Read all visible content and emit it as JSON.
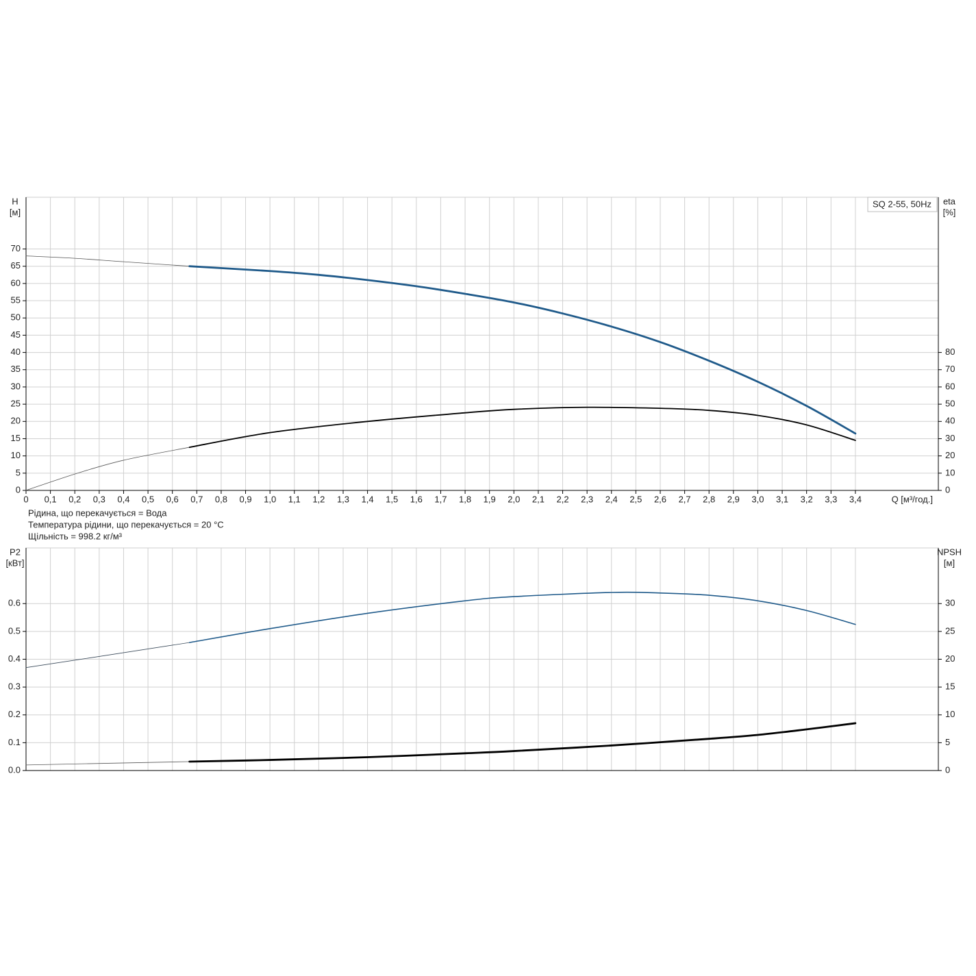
{
  "chart_data": [
    {
      "type": "line",
      "title": "SQ 2-55, 50Hz",
      "y_label": "H",
      "y_unit": "[м]",
      "y2_label": "eta",
      "y2_unit": "[%]",
      "x_label": "Q [м³/год.]",
      "notes": [
        "Рідина, що перекачується = Вода",
        "Температура рідини, що перекачується = 20 °C",
        "Щільність = 998.2 кг/м³"
      ],
      "xlim": [
        0,
        3.74
      ],
      "xticks": [
        0,
        {
          "value": 0.1,
          "label": "0,1"
        },
        {
          "value": 0.2,
          "label": "0,2"
        },
        {
          "value": 0.3,
          "label": "0,3"
        },
        {
          "value": 0.4,
          "label": "0,4"
        },
        {
          "value": 0.5,
          "label": "0,5"
        },
        {
          "value": 0.6,
          "label": "0,6"
        },
        {
          "value": 0.7,
          "label": "0,7"
        },
        {
          "value": 0.8,
          "label": "0,8"
        },
        {
          "value": 0.9,
          "label": "0,9"
        },
        {
          "value": 1.0,
          "label": "1,0"
        },
        {
          "value": 1.1,
          "label": "1,1"
        },
        {
          "value": 1.2,
          "label": "1,2"
        },
        {
          "value": 1.3,
          "label": "1,3"
        },
        {
          "value": 1.4,
          "label": "1,4"
        },
        {
          "value": 1.5,
          "label": "1,5"
        },
        {
          "value": 1.6,
          "label": "1,6"
        },
        {
          "value": 1.7,
          "label": "1,7"
        },
        {
          "value": 1.8,
          "label": "1,8"
        },
        {
          "value": 1.9,
          "label": "1,9"
        },
        {
          "value": 2.0,
          "label": "2,0"
        },
        {
          "value": 2.1,
          "label": "2,1"
        },
        {
          "value": 2.2,
          "label": "2,2"
        },
        {
          "value": 2.3,
          "label": "2,3"
        },
        {
          "value": 2.4,
          "label": "2,4"
        },
        {
          "value": 2.5,
          "label": "2,5"
        },
        {
          "value": 2.6,
          "label": "2,6"
        },
        {
          "value": 2.7,
          "label": "2,7"
        },
        {
          "value": 2.8,
          "label": "2,8"
        },
        {
          "value": 2.9,
          "label": "2,9"
        },
        {
          "value": 3.0,
          "label": "3,0"
        },
        {
          "value": 3.1,
          "label": "3,1"
        },
        {
          "value": 3.2,
          "label": "3,2"
        },
        {
          "value": 3.3,
          "label": "3,3"
        },
        {
          "value": 3.4,
          "label": "3,4"
        }
      ],
      "ylim": [
        0,
        85
      ],
      "yticks": [
        0,
        5,
        10,
        15,
        20,
        25,
        30,
        35,
        40,
        45,
        50,
        55,
        60,
        65,
        70
      ],
      "y2lim": [
        0,
        170
      ],
      "y2ticks": [
        0,
        10,
        20,
        30,
        40,
        50,
        60,
        70,
        80
      ],
      "grid": true,
      "series": [
        {
          "color": "#555555",
          "line_width": 0.8,
          "x": [
            0,
            0.2,
            0.4,
            0.67
          ],
          "values": [
            68,
            67.3,
            66.3,
            65
          ]
        },
        {
          "color": "#1f5a8a",
          "line_width": 2.8,
          "x": [
            0.67,
            1.0,
            1.2,
            1.4,
            1.6,
            1.8,
            2.0,
            2.2,
            2.4,
            2.6,
            2.8,
            3.0,
            3.2,
            3.4
          ],
          "values": [
            65,
            63.6,
            62.5,
            61,
            59.2,
            57,
            54.5,
            51.3,
            47.5,
            43,
            37.6,
            31.5,
            24.5,
            16.5
          ]
        },
        {
          "color": "#555555",
          "line_width": 0.8,
          "axis": "y2",
          "x": [
            0,
            0.2,
            0.4,
            0.67
          ],
          "values": [
            0,
            9.5,
            17.5,
            25
          ]
        },
        {
          "color": "#000000",
          "line_width": 1.8,
          "axis": "y2",
          "x": [
            0.67,
            1.0,
            1.4,
            1.8,
            2.0,
            2.3,
            2.6,
            2.8,
            3.0,
            3.2,
            3.4
          ],
          "values": [
            25,
            33.5,
            40,
            45,
            47,
            48.2,
            47.6,
            46.4,
            43.5,
            38,
            29
          ]
        }
      ]
    },
    {
      "type": "line",
      "y_label": "P2",
      "y_unit": "[кВт]",
      "y2_label": "NPSH",
      "y2_unit": "[м]",
      "xlim": [
        0,
        3.74
      ],
      "ylim": [
        0,
        0.8
      ],
      "yticks": [
        {
          "value": 0,
          "label": "0.0"
        },
        0.1,
        0.2,
        0.3,
        0.4,
        0.5,
        0.6
      ],
      "y2lim": [
        0,
        40
      ],
      "y2ticks": [
        0,
        5,
        10,
        15,
        20,
        25,
        30
      ],
      "grid": true,
      "series": [
        {
          "color": "#3a4a5a",
          "line_width": 0.8,
          "x": [
            0,
            0.3,
            0.67
          ],
          "values": [
            0.37,
            0.41,
            0.46
          ]
        },
        {
          "color": "#1f5a8a",
          "line_width": 1.6,
          "x": [
            0.67,
            1.0,
            1.4,
            1.8,
            2.0,
            2.4,
            2.6,
            2.8,
            3.0,
            3.2,
            3.4
          ],
          "values": [
            0.46,
            0.51,
            0.565,
            0.61,
            0.625,
            0.64,
            0.638,
            0.63,
            0.61,
            0.575,
            0.525
          ]
        },
        {
          "color": "#555555",
          "line_width": 0.8,
          "axis": "y2",
          "x": [
            0,
            0.67
          ],
          "values": [
            1,
            1.6
          ]
        },
        {
          "color": "#000000",
          "line_width": 2.8,
          "axis": "y2",
          "x": [
            0.67,
            1.0,
            1.4,
            1.8,
            2.0,
            2.4,
            2.8,
            3.0,
            3.2,
            3.4
          ],
          "values": [
            1.6,
            1.9,
            2.4,
            3.1,
            3.5,
            4.5,
            5.7,
            6.4,
            7.4,
            8.5
          ]
        }
      ]
    }
  ]
}
